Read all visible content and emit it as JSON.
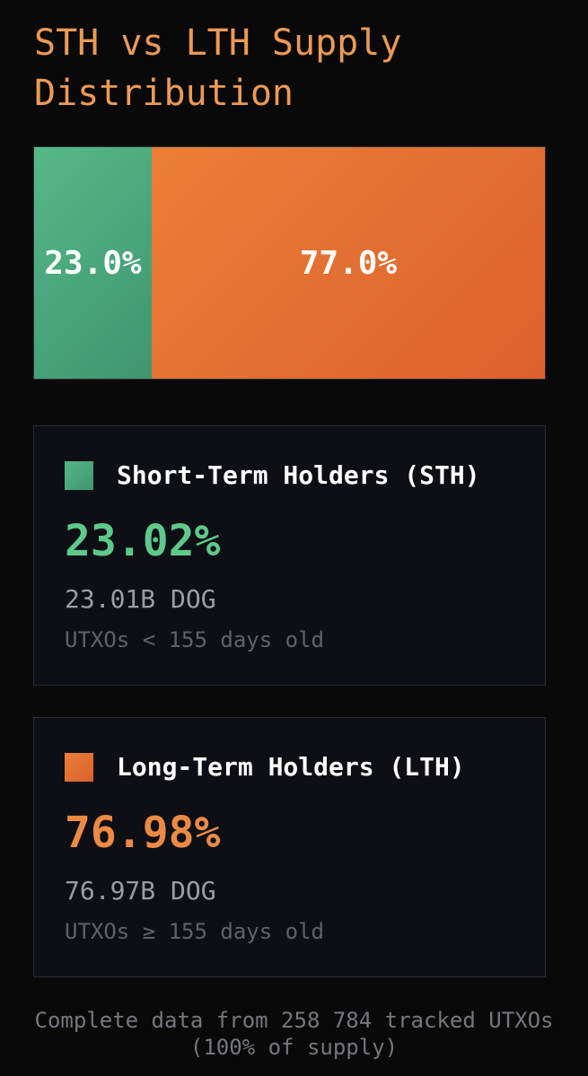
{
  "title": "STH vs LTH Supply Distribution",
  "colors": {
    "title": "#ec9a55",
    "sth": "#5ec98a",
    "lth": "#ec8a45"
  },
  "bar": {
    "sth_share": 23.0,
    "lth_share": 77.0,
    "sth_label": "23.0%",
    "lth_label": "77.0%"
  },
  "cards": [
    {
      "label": "Short-Term Holders (STH)",
      "percent": "23.02%",
      "amount": "23.01B DOG",
      "description": "UTXOs < 155 days old"
    },
    {
      "label": "Long-Term Holders (LTH)",
      "percent": "76.98%",
      "amount": "76.97B DOG",
      "description": "UTXOs ≥ 155 days old"
    }
  ],
  "footer": "Complete data from 258 784 tracked UTXOs (100% of supply)"
}
